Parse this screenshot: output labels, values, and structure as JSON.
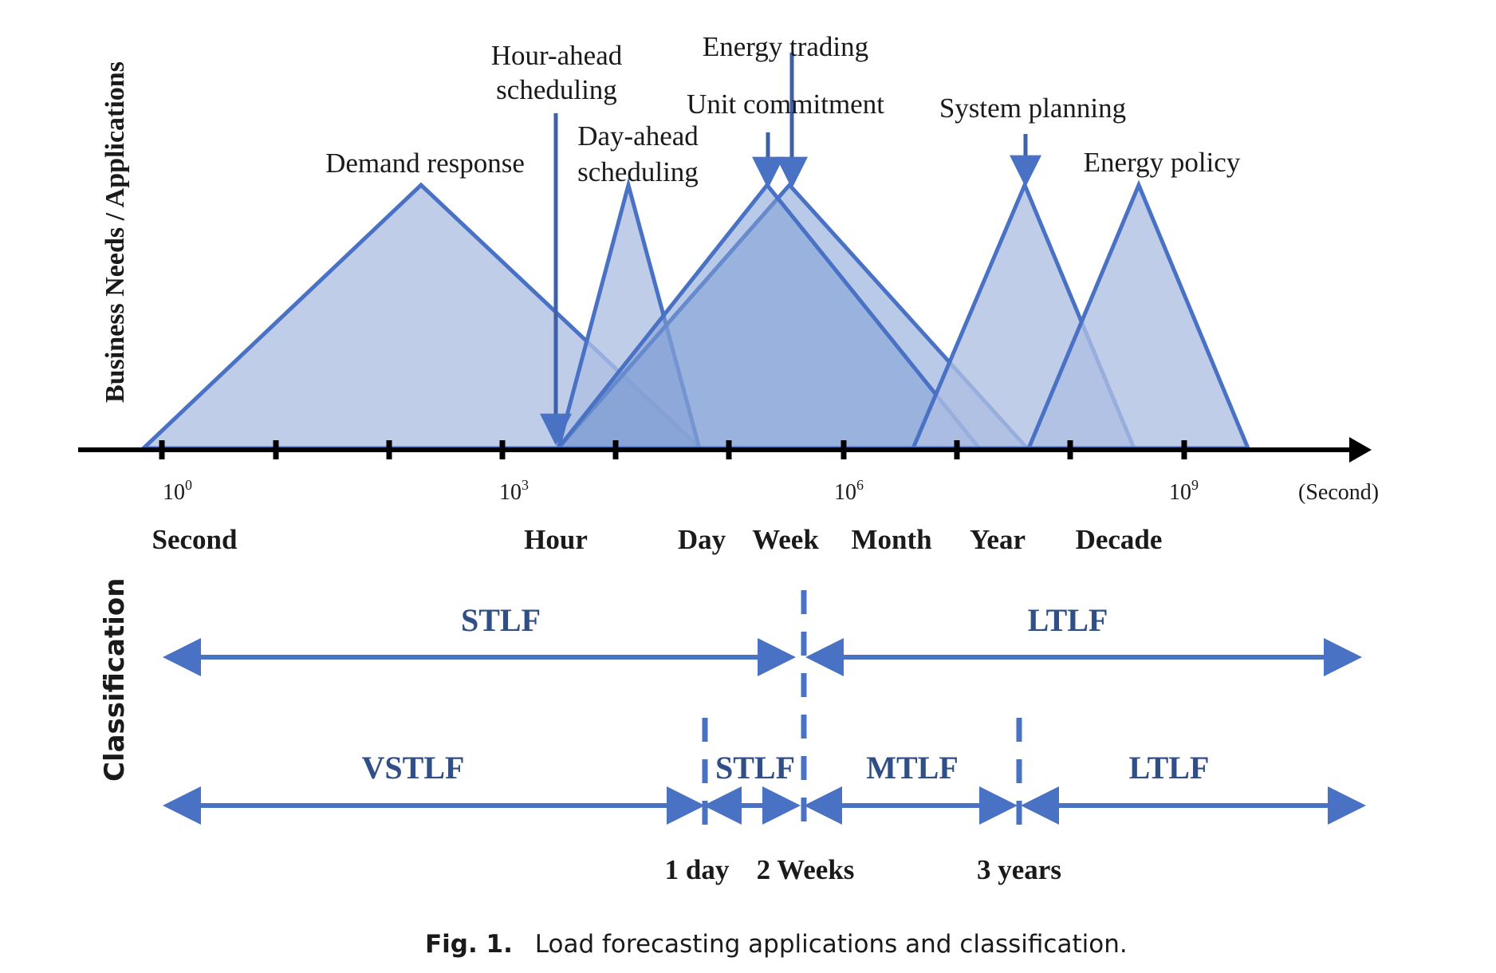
{
  "y_axis_top": "Business Needs / Applications",
  "y_axis_bottom": "Classification",
  "unit": "(Second)",
  "ticks": [
    {
      "base": "10",
      "exp": "0"
    },
    {
      "base": "10",
      "exp": "3"
    },
    {
      "base": "10",
      "exp": "6"
    },
    {
      "base": "10",
      "exp": "9"
    }
  ],
  "time_labels": [
    "Second",
    "Hour",
    "Day",
    "Week",
    "Month",
    "Year",
    "Decade"
  ],
  "applications": [
    {
      "line1": "Demand response",
      "line2": ""
    },
    {
      "line1": "Hour-ahead",
      "line2": "scheduling"
    },
    {
      "line1": "Day-ahead",
      "line2": "scheduling"
    },
    {
      "line1": "Energy trading",
      "line2": ""
    },
    {
      "line1": "Unit commitment",
      "line2": ""
    },
    {
      "line1": "System planning",
      "line2": ""
    },
    {
      "line1": "Energy policy",
      "line2": ""
    }
  ],
  "classification_row1": [
    "STLF",
    "LTLF"
  ],
  "classification_row2": [
    "VSTLF",
    "STLF",
    "MTLF",
    "LTLF"
  ],
  "boundaries": [
    "1 day",
    "2 Weeks",
    "3 years"
  ],
  "caption": {
    "label": "Fig. 1.",
    "text": "Load forecasting applications and classification."
  },
  "colors": {
    "fill": "#aebfe3",
    "stroke": "#4a72c4",
    "axis": "#000000",
    "arrow": "#3d60a8",
    "class_text": "#2f4f86"
  }
}
